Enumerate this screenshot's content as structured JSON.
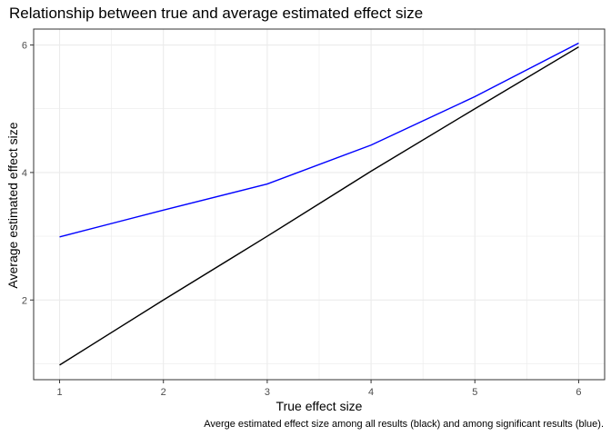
{
  "chart_data": {
    "type": "line",
    "title": "Relationship between true and average estimated effect size",
    "xlabel": "True effect size",
    "ylabel": "Average estimated effect size",
    "caption": "Averge estimated effect size among all results (black) and among significant results (blue).",
    "xlim": [
      0.75,
      6.25
    ],
    "ylim": [
      0.75,
      6.25
    ],
    "x_ticks": [
      1,
      2,
      3,
      4,
      5,
      6
    ],
    "y_ticks": [
      2,
      4,
      6
    ],
    "grid": true,
    "legend": "none",
    "series": [
      {
        "color": "#000000",
        "x": [
          1,
          2,
          3,
          4,
          5,
          6
        ],
        "y": [
          0.98,
          2.0,
          3.0,
          4.02,
          5.0,
          5.97
        ]
      },
      {
        "color": "#0000FF",
        "x": [
          1,
          2,
          3,
          4,
          5,
          6
        ],
        "y": [
          2.99,
          3.41,
          3.82,
          4.43,
          5.19,
          6.03
        ]
      }
    ]
  }
}
